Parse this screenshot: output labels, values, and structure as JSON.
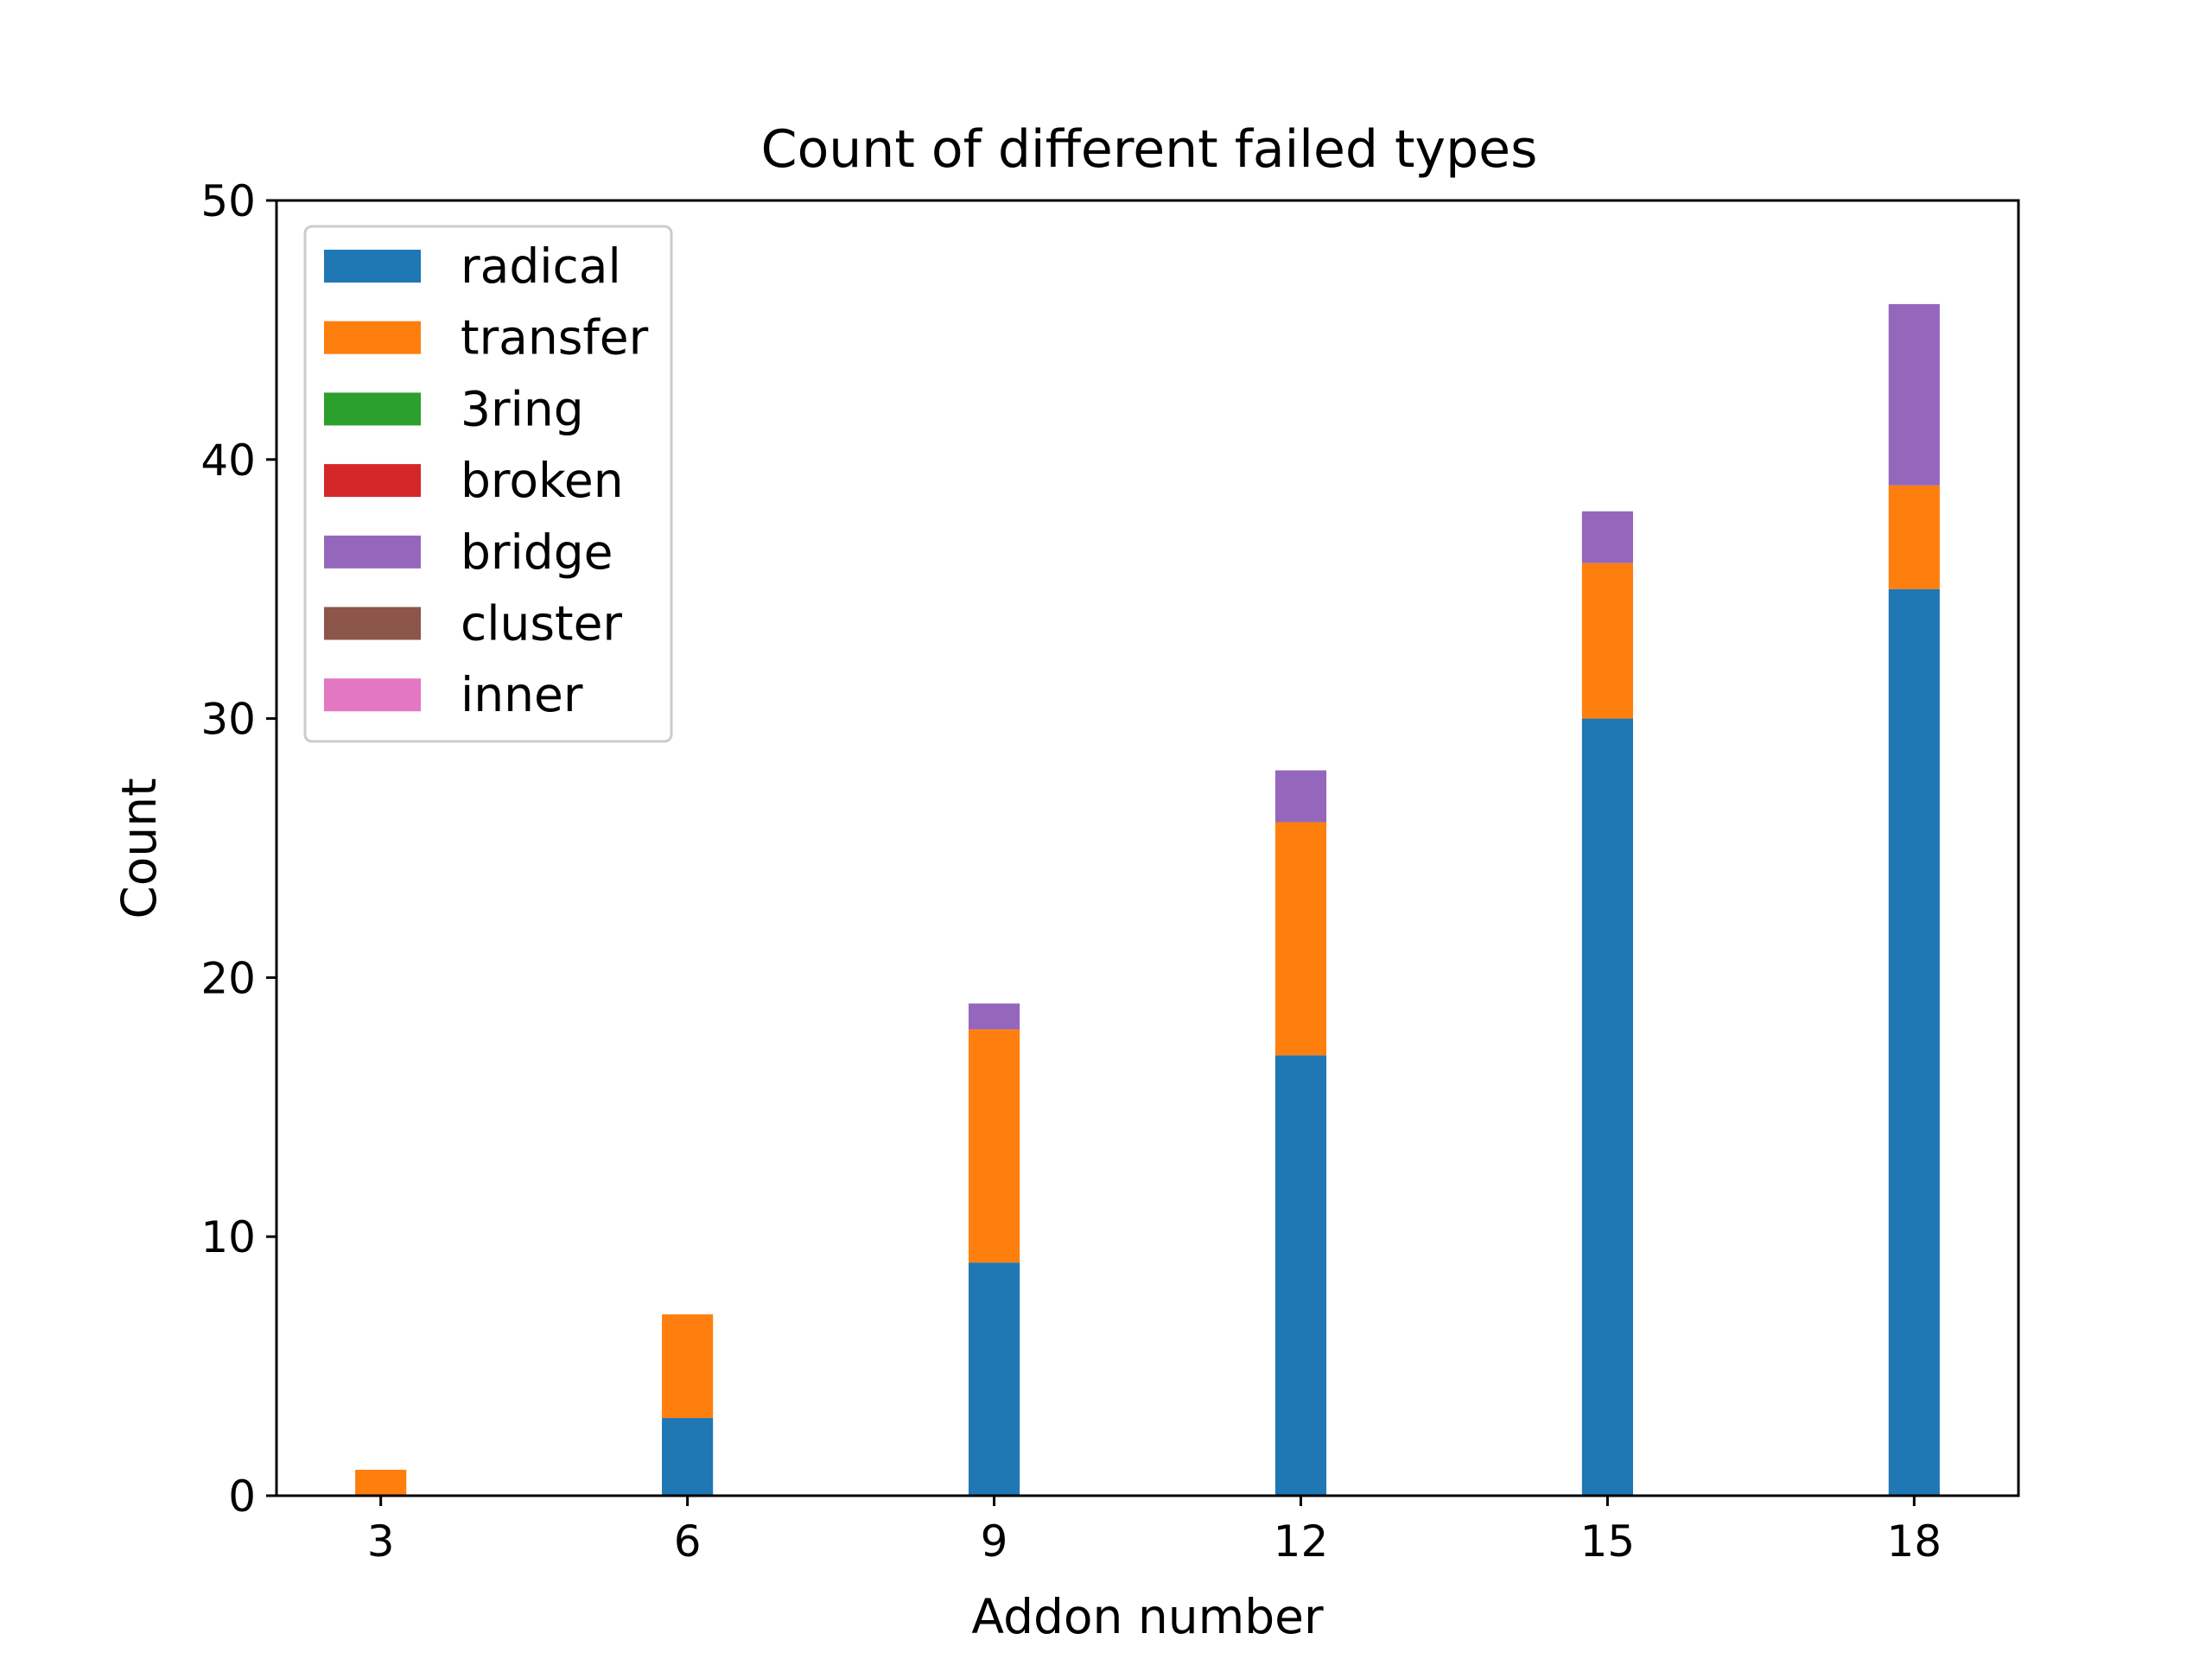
{
  "chart_data": {
    "type": "bar",
    "stacked": true,
    "title": "Count of different failed types",
    "xlabel": "Addon number",
    "ylabel": "Count",
    "categories": [
      "3",
      "6",
      "9",
      "12",
      "15",
      "18"
    ],
    "x": [
      3,
      6,
      9,
      12,
      15,
      18
    ],
    "xticks": [
      "3",
      "6",
      "9",
      "12",
      "15",
      "18"
    ],
    "yticks": [
      "0",
      "10",
      "20",
      "30",
      "40",
      "50"
    ],
    "ylim": [
      0,
      50
    ],
    "xlim": [
      1.98,
      19.02
    ],
    "bar_width": 0.5,
    "grid": false,
    "legend_position": "upper-left",
    "series": [
      {
        "name": "radical",
        "color": "#1f77b4",
        "values": [
          0,
          3,
          9,
          17,
          30,
          35
        ]
      },
      {
        "name": "transfer",
        "color": "#ff7f0e",
        "values": [
          1,
          4,
          9,
          9,
          6,
          4
        ]
      },
      {
        "name": "3ring",
        "color": "#2ca02c",
        "values": [
          0,
          0,
          0,
          0,
          0,
          0
        ]
      },
      {
        "name": "broken",
        "color": "#d62728",
        "values": [
          0,
          0,
          0,
          0,
          0,
          0
        ]
      },
      {
        "name": "bridge",
        "color": "#9467bd",
        "values": [
          0,
          0,
          1,
          2,
          2,
          7
        ]
      },
      {
        "name": "cluster",
        "color": "#8c564b",
        "values": [
          0,
          0,
          0,
          0,
          0,
          0
        ]
      },
      {
        "name": "inner",
        "color": "#e377c2",
        "values": [
          0,
          0,
          0,
          0,
          0,
          0
        ]
      }
    ]
  }
}
